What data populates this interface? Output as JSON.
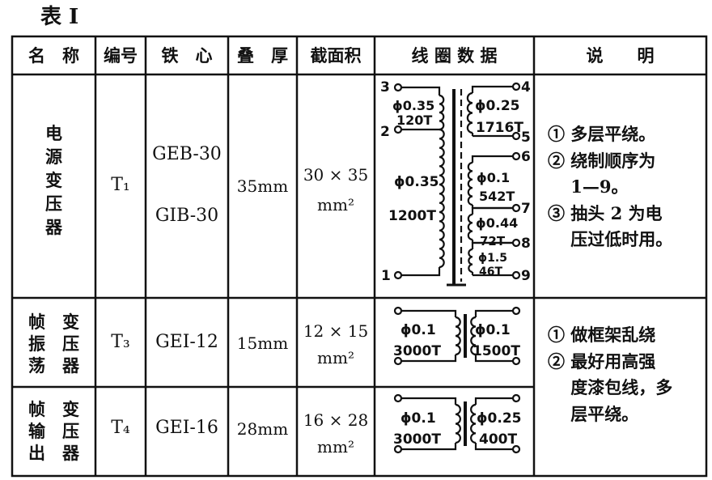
{
  "title": "表 I",
  "headers": [
    "名　称",
    "编号",
    "铁　心",
    "叠　厚",
    "截面积",
    "线 圈 数 据",
    "说　　明"
  ],
  "rows": [
    {
      "name": [
        "电",
        "源",
        "变",
        "压",
        "器"
      ],
      "code": "T₁",
      "core": [
        "GEB-30",
        "GIB-30"
      ],
      "thickness": "35mm",
      "area": [
        "30 × 35",
        "mm²"
      ],
      "coil": {
        "terminals": [
          "3",
          "2",
          "1",
          "4",
          "5",
          "6",
          "7",
          "8",
          "9"
        ],
        "primary": [
          {
            "wire": "ϕ0.35",
            "turns": "120T"
          },
          {
            "wire": "ϕ0.35",
            "turns": "1200T"
          }
        ],
        "secondary": [
          {
            "wire": "ϕ0.25",
            "turns": "1716T"
          },
          {
            "wire": "ϕ0.1",
            "turns": "542T"
          },
          {
            "wire": "ϕ0.44",
            "turns": "72T"
          },
          {
            "wire": "ϕ1.5",
            "turns": "46T"
          }
        ]
      },
      "notes": [
        "① 多层平绕。",
        "② 绕制顺序为",
        "　 1—9。",
        "③ 抽头 2 为电",
        "　 压过低时用。"
      ]
    },
    {
      "name": [
        "帧　变",
        "振　压",
        "荡　器"
      ],
      "code": "T₃",
      "core": [
        "GEI-12"
      ],
      "thickness": "15mm",
      "area": [
        "12 × 15",
        "mm²"
      ],
      "coil": {
        "primary": {
          "wire": "ϕ0.1",
          "turns": "3000T"
        },
        "secondary": {
          "wire": "ϕ0.1",
          "turns": "1500T"
        }
      }
    },
    {
      "name": [
        "帧　变",
        "输　压",
        "出　器"
      ],
      "code": "T₄",
      "core": [
        "GEI-16"
      ],
      "thickness": "28mm",
      "area": [
        "16 × 28",
        "mm²"
      ],
      "coil": {
        "primary": {
          "wire": "ϕ0.1",
          "turns": "3000T"
        },
        "secondary": {
          "wire": "ϕ0.25",
          "turns": "400T"
        }
      }
    }
  ],
  "shared_notes": [
    "① 做框架乱绕",
    "② 最好用高强",
    "　 度漆包线，多",
    "　 层平绕。"
  ]
}
